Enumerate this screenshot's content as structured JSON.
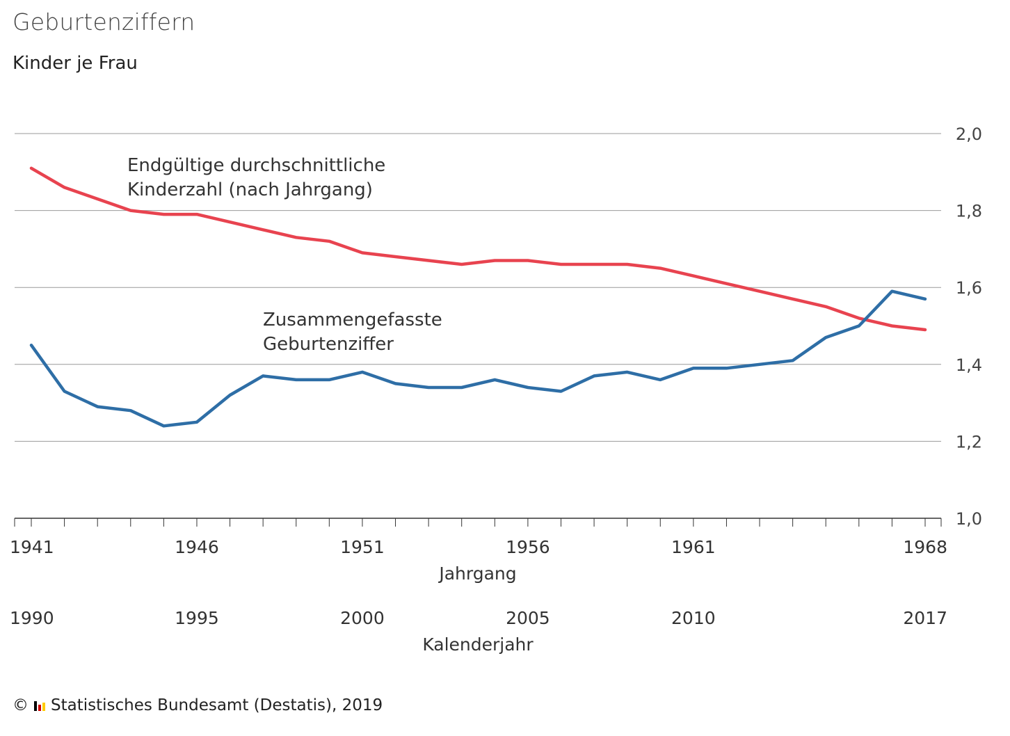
{
  "header": {
    "title": "Geburtenziffern",
    "subtitle": "Kinder je Frau"
  },
  "footer": {
    "copyright_symbol": "©",
    "source": "Statistisches Bundesamt (Destatis), 2019"
  },
  "chart_data": {
    "type": "line",
    "title": "Geburtenziffern",
    "ylabel": "Kinder je Frau",
    "ylim": [
      1.0,
      2.0
    ],
    "yticks": [
      "1,0",
      "1,2",
      "1,4",
      "1,6",
      "1,8",
      "2,0"
    ],
    "ytick_values": [
      1.0,
      1.2,
      1.4,
      1.6,
      1.8,
      2.0
    ],
    "grid": true,
    "x_primary": {
      "label": "Jahrgang",
      "tick_labels": [
        "1941",
        "1946",
        "1951",
        "1956",
        "1961",
        "1968"
      ],
      "tick_indices": [
        0,
        5,
        10,
        15,
        20,
        27
      ]
    },
    "x_secondary": {
      "label": "Kalenderjahr",
      "tick_labels": [
        "1990",
        "1995",
        "2000",
        "2005",
        "2010",
        "2017"
      ],
      "tick_indices": [
        0,
        5,
        10,
        15,
        20,
        27
      ]
    },
    "cohorts": [
      "1941",
      "1942",
      "1943",
      "1944",
      "1945",
      "1946",
      "1947",
      "1948",
      "1949",
      "1950",
      "1951",
      "1952",
      "1953",
      "1954",
      "1955",
      "1956",
      "1957",
      "1958",
      "1959",
      "1960",
      "1961",
      "1962",
      "1963",
      "1964",
      "1965",
      "1966",
      "1967",
      "1968"
    ],
    "calendar_years": [
      "1990",
      "1991",
      "1992",
      "1993",
      "1994",
      "1995",
      "1996",
      "1997",
      "1998",
      "1999",
      "2000",
      "2001",
      "2002",
      "2003",
      "2004",
      "2005",
      "2006",
      "2007",
      "2008",
      "2009",
      "2010",
      "2011",
      "2012",
      "2013",
      "2014",
      "2015",
      "2016",
      "2017"
    ],
    "series": [
      {
        "name": "Endgültige durchschnittliche Kinderzahl (nach Jahrgang)",
        "label_lines": [
          "Endgültige durchschnittliche",
          "Kinderzahl (nach Jahrgang)"
        ],
        "color": "#e8434f",
        "values": [
          1.91,
          1.86,
          1.83,
          1.8,
          1.79,
          1.79,
          1.77,
          1.75,
          1.73,
          1.72,
          1.69,
          1.68,
          1.67,
          1.66,
          1.67,
          1.67,
          1.66,
          1.66,
          1.66,
          1.65,
          1.63,
          1.61,
          1.59,
          1.57,
          1.55,
          1.52,
          1.5,
          1.49
        ]
      },
      {
        "name": "Zusammengefasste Geburtenziffer",
        "label_lines": [
          "Zusammengefasste",
          "Geburtenziffer"
        ],
        "color": "#2e6ea6",
        "values": [
          1.45,
          1.33,
          1.29,
          1.28,
          1.24,
          1.25,
          1.32,
          1.37,
          1.36,
          1.36,
          1.38,
          1.35,
          1.34,
          1.34,
          1.36,
          1.34,
          1.33,
          1.37,
          1.38,
          1.36,
          1.39,
          1.39,
          1.4,
          1.41,
          1.47,
          1.5,
          1.59,
          1.57
        ]
      }
    ]
  }
}
